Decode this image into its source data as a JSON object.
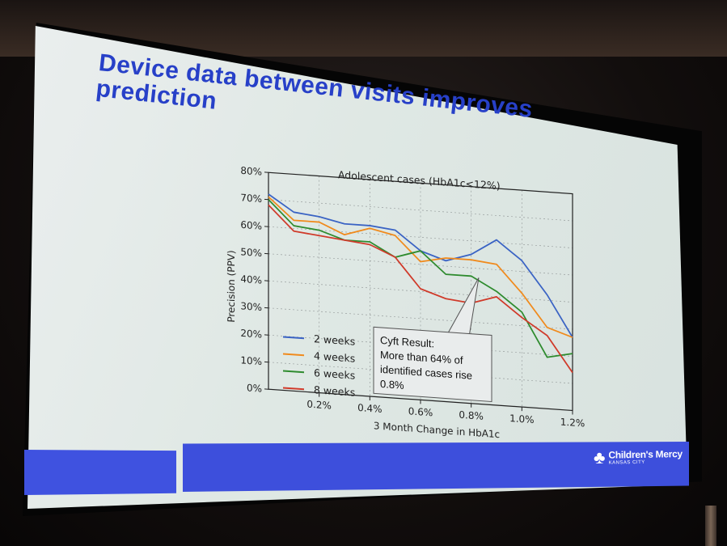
{
  "slide": {
    "title": "Device data between visits improves prediction"
  },
  "chart_data": {
    "type": "line",
    "title": "Adolescent cases (HbA1c<12%)",
    "xlabel": "3 Month Change in HbA1c",
    "ylabel": "Precision (PPV)",
    "x": [
      0.0,
      0.1,
      0.2,
      0.3,
      0.4,
      0.5,
      0.6,
      0.7,
      0.8,
      0.9,
      1.0,
      1.1,
      1.2
    ],
    "xticks": [
      "0.2%",
      "0.4%",
      "0.6%",
      "0.8%",
      "1.0%",
      "1.2%"
    ],
    "yticks": [
      "0%",
      "10%",
      "20%",
      "30%",
      "40%",
      "50%",
      "60%",
      "70%",
      "80%"
    ],
    "xlim": [
      0.0,
      1.2
    ],
    "ylim": [
      0,
      80
    ],
    "grid": true,
    "legend": "lower-left",
    "series": [
      {
        "name": "2 weeks",
        "color": "#3a63c4",
        "values": [
          72,
          66,
          65,
          63,
          63,
          62,
          55,
          52,
          55,
          61,
          54,
          42,
          27
        ]
      },
      {
        "name": "4 weeks",
        "color": "#f08a1c",
        "values": [
          71,
          63,
          63,
          59,
          62,
          60,
          51,
          53,
          53,
          52,
          42,
          30,
          27
        ]
      },
      {
        "name": "6 weeks",
        "color": "#2e8b2e",
        "values": [
          70,
          61,
          60,
          57,
          57,
          52,
          55,
          47,
          47,
          42,
          35,
          19,
          21
        ]
      },
      {
        "name": "8 weeks",
        "color": "#d03a2a",
        "values": [
          68,
          59,
          58,
          57,
          56,
          52,
          41,
          38,
          37,
          40,
          33,
          27,
          14
        ]
      }
    ],
    "annotation": {
      "lines": [
        "Cyft Result:",
        "More than 64% of",
        "identified cases rise",
        "0.8%"
      ]
    }
  },
  "logo": {
    "name": "Children's Mercy",
    "sub": "KANSAS CITY"
  }
}
